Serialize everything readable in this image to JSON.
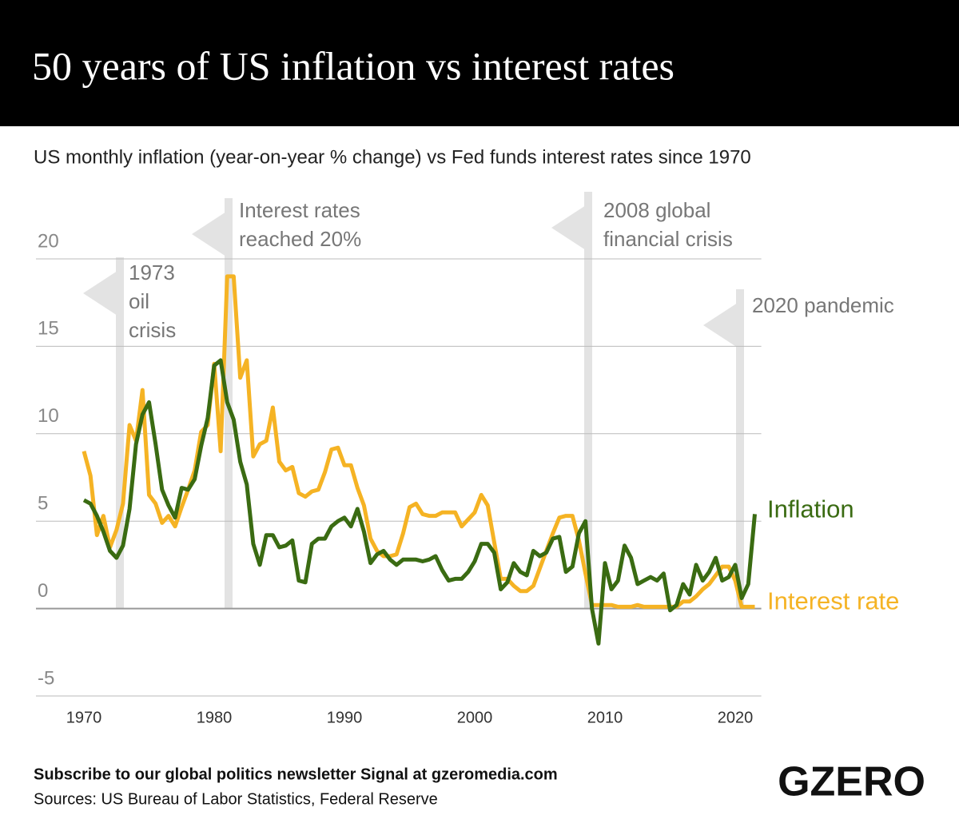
{
  "header": {
    "title": "50 years of US inflation vs interest rates"
  },
  "chart_data": {
    "type": "line",
    "subtitle": "US monthly inflation (year-on-year % change) vs Fed funds interest rates since 1970",
    "x": [
      1970,
      1970.5,
      1971,
      1971.5,
      1972,
      1972.5,
      1973,
      1973.5,
      1974,
      1974.5,
      1975,
      1975.5,
      1976,
      1976.5,
      1977,
      1977.5,
      1978,
      1978.5,
      1979,
      1979.5,
      1980,
      1980.5,
      1981,
      1981.5,
      1982,
      1982.5,
      1983,
      1983.5,
      1984,
      1984.5,
      1985,
      1985.5,
      1986,
      1986.5,
      1987,
      1987.5,
      1988,
      1988.5,
      1989,
      1989.5,
      1990,
      1990.5,
      1991,
      1991.5,
      1992,
      1992.5,
      1993,
      1993.5,
      1994,
      1994.5,
      1995,
      1995.5,
      1996,
      1996.5,
      1997,
      1997.5,
      1998,
      1998.5,
      1999,
      1999.5,
      2000,
      2000.5,
      2001,
      2001.5,
      2002,
      2002.5,
      2003,
      2003.5,
      2004,
      2004.5,
      2005,
      2005.5,
      2006,
      2006.5,
      2007,
      2007.5,
      2008,
      2008.5,
      2009,
      2009.5,
      2010,
      2010.5,
      2011,
      2011.5,
      2012,
      2012.5,
      2013,
      2013.5,
      2014,
      2014.5,
      2015,
      2015.5,
      2016,
      2016.5,
      2017,
      2017.5,
      2018,
      2018.5,
      2019,
      2019.5,
      2020,
      2020.5,
      2021,
      2021.5
    ],
    "series": [
      {
        "name": "Interest rate",
        "color": "#f5b324",
        "values": [
          9.0,
          7.6,
          4.2,
          5.3,
          3.5,
          4.5,
          6.0,
          10.5,
          9.6,
          12.5,
          6.5,
          6.0,
          4.9,
          5.3,
          4.7,
          5.8,
          6.8,
          7.9,
          10.1,
          10.5,
          14.0,
          9.0,
          19.0,
          19.0,
          13.2,
          14.2,
          8.7,
          9.4,
          9.6,
          11.5,
          8.4,
          7.9,
          8.1,
          6.6,
          6.4,
          6.7,
          6.8,
          7.8,
          9.1,
          9.2,
          8.2,
          8.2,
          6.9,
          5.9,
          4.0,
          3.3,
          3.0,
          3.0,
          3.1,
          4.3,
          5.8,
          6.0,
          5.4,
          5.3,
          5.3,
          5.5,
          5.5,
          5.5,
          4.7,
          5.1,
          5.5,
          6.5,
          5.9,
          3.8,
          1.7,
          1.7,
          1.3,
          1.0,
          1.0,
          1.3,
          2.3,
          3.3,
          4.3,
          5.2,
          5.3,
          5.3,
          3.9,
          2.0,
          0.2,
          0.2,
          0.2,
          0.2,
          0.1,
          0.1,
          0.1,
          0.2,
          0.1,
          0.1,
          0.1,
          0.1,
          0.1,
          0.1,
          0.4,
          0.4,
          0.7,
          1.1,
          1.4,
          1.9,
          2.4,
          2.4,
          1.6,
          0.1,
          0.1,
          0.1
        ]
      },
      {
        "name": "Inflation",
        "color": "#3a6b12",
        "values": [
          6.2,
          6.0,
          5.3,
          4.4,
          3.3,
          2.9,
          3.6,
          5.7,
          9.4,
          11.1,
          11.8,
          9.4,
          6.8,
          5.9,
          5.2,
          6.9,
          6.8,
          7.4,
          9.3,
          10.9,
          13.9,
          14.2,
          11.8,
          10.8,
          8.4,
          7.1,
          3.7,
          2.5,
          4.2,
          4.2,
          3.5,
          3.6,
          3.9,
          1.6,
          1.5,
          3.7,
          4.0,
          4.0,
          4.7,
          5.0,
          5.2,
          4.7,
          5.7,
          4.4,
          2.6,
          3.1,
          3.3,
          2.8,
          2.5,
          2.8,
          2.8,
          2.8,
          2.7,
          2.8,
          3.0,
          2.2,
          1.6,
          1.7,
          1.7,
          2.1,
          2.7,
          3.7,
          3.7,
          3.2,
          1.1,
          1.5,
          2.6,
          2.1,
          1.9,
          3.3,
          3.0,
          3.2,
          4.0,
          4.1,
          2.1,
          2.4,
          4.3,
          5.0,
          0.0,
          -2.0,
          2.6,
          1.1,
          1.6,
          3.6,
          2.9,
          1.4,
          1.6,
          1.8,
          1.6,
          2.0,
          -0.1,
          0.2,
          1.4,
          0.8,
          2.5,
          1.6,
          2.1,
          2.9,
          1.6,
          1.8,
          2.5,
          0.6,
          1.4,
          5.4
        ]
      }
    ],
    "xlim": [
      1970,
      2022
    ],
    "xticks": [
      1970,
      1980,
      1990,
      2000,
      2010,
      2020
    ],
    "ylim": [
      -5,
      20
    ],
    "yticks": [
      -5,
      0,
      5,
      10,
      15,
      20
    ],
    "grid": true,
    "annotations": [
      [
        "1973",
        "oil",
        "crisis"
      ],
      [
        "Interest rates",
        "reached 20%"
      ],
      [
        "2008 global",
        "financial crisis"
      ],
      [
        "2020 pandemic"
      ]
    ]
  },
  "footer": {
    "cta": "Subscribe to our global politics newsletter Signal at gzeromedia.com",
    "source": "Sources: US Bureau of Labor Statistics, Federal Reserve",
    "logo": "GZERO"
  }
}
